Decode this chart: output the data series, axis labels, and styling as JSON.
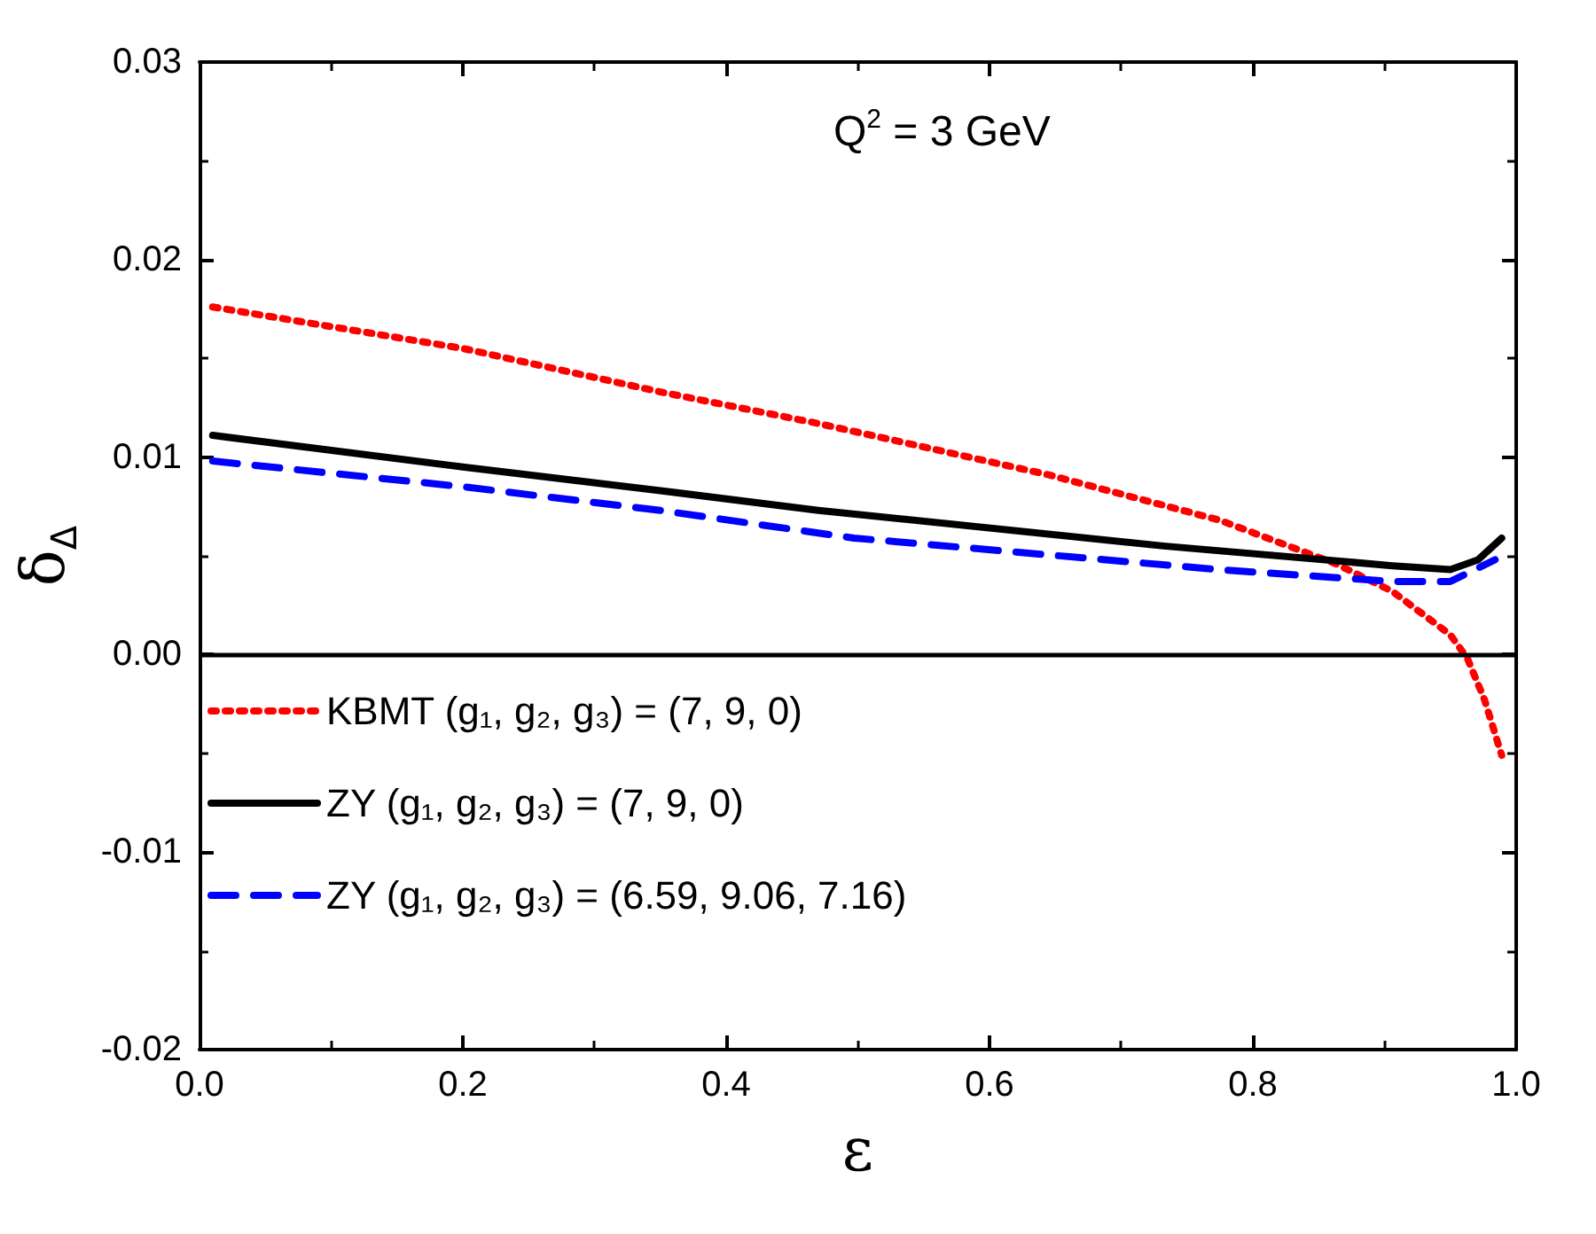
{
  "chart_data": {
    "type": "line",
    "xlabel": "ε",
    "ylabel": "δ$_{Δ}$",
    "annotations": [
      "Q$^{2}$ = 3 GeV"
    ],
    "xlim": [
      0,
      1
    ],
    "xticks": [
      {
        "value": 0,
        "label": "0.0"
      },
      0.2,
      0.4,
      0.6,
      0.8,
      {
        "value": 1,
        "label": "1.0"
      }
    ],
    "ylim": [
      -0.02,
      0.03
    ],
    "yticks": [
      {
        "value": -0.02,
        "label": "-0.02"
      },
      {
        "value": -0.01,
        "label": "-0.01"
      },
      {
        "value": 0,
        "label": "0.00"
      },
      {
        "value": 0.01,
        "label": "0.01"
      },
      {
        "value": 0.02,
        "label": "0.02"
      },
      {
        "value": 0.03,
        "label": "0.03"
      }
    ],
    "grid": false,
    "legend": "bottom left",
    "marker": "none",
    "ref_lines": [
      {
        "axis": "y",
        "value": 0,
        "color": "#000000",
        "line_style": "solid"
      }
    ],
    "series": [
      {
        "name": "KBMT (g₁, g₂, g₃) = (7, 9, 0)",
        "color": "#ff0000",
        "line_style": "dotted",
        "x": [
          0.01,
          0.2,
          0.35,
          0.47,
          0.645,
          0.775,
          0.863,
          0.906,
          0.95,
          0.963,
          0.976,
          0.989
        ],
        "values": [
          0.0176,
          0.0155,
          0.0133,
          0.0117,
          0.0091,
          0.0068,
          0.0046,
          0.0032,
          0.001,
          -0.0002,
          -0.0023,
          -0.0051
        ]
      },
      {
        "name": "ZY (g₁, g₂, g₃) = (7, 9, 0)",
        "color": "#000000",
        "line_style": "solid",
        "x": [
          0.01,
          0.2,
          0.35,
          0.47,
          0.732,
          0.906,
          0.95,
          0.971,
          0.989
        ],
        "values": [
          0.0111,
          0.0095,
          0.0083,
          0.0073,
          0.0055,
          0.0045,
          0.0043,
          0.0048,
          0.0059
        ]
      },
      {
        "name": "ZY (g₁, g₂, g₃) = (6.59, 9.06, 7.16)",
        "color": "#0000ff",
        "line_style": "dashed",
        "x": [
          0.01,
          0.2,
          0.35,
          0.497,
          0.775,
          0.906,
          0.95,
          0.984
        ],
        "values": [
          0.0098,
          0.0085,
          0.0073,
          0.0059,
          0.0043,
          0.0037,
          0.0037,
          0.0048
        ]
      }
    ]
  }
}
